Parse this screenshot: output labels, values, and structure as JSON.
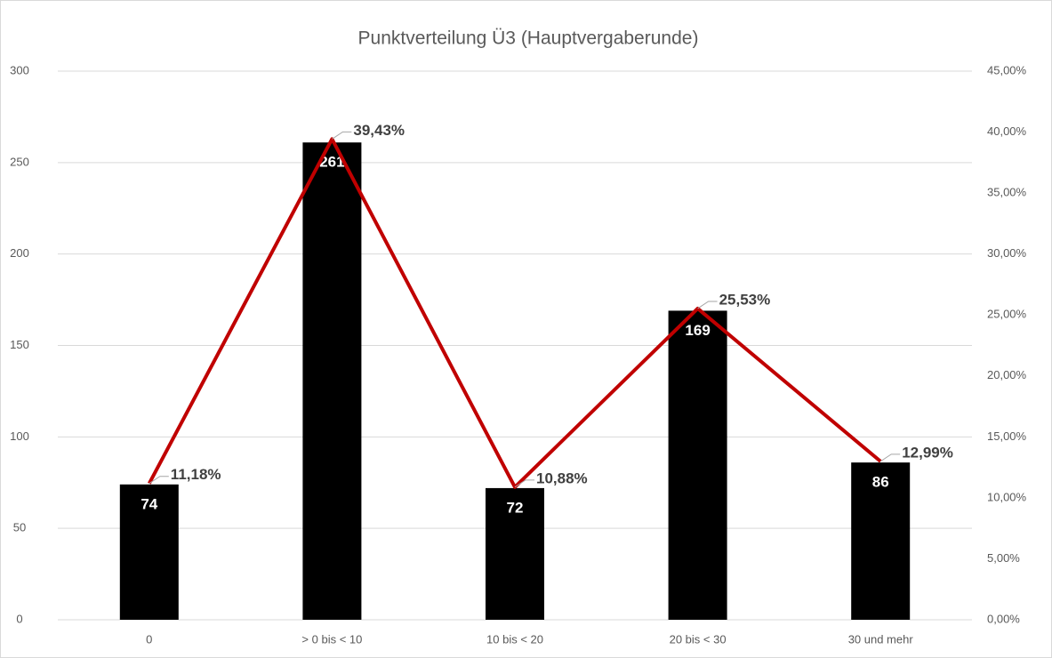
{
  "chart_data": {
    "type": "bar-line",
    "title": "Punktverteilung Ü3 (Hauptvergaberunde)",
    "categories": [
      "0",
      "> 0 bis < 10",
      "10 bis < 20",
      "20 bis < 30",
      "30 und mehr"
    ],
    "series": [
      {
        "type": "bar",
        "color": "#000000",
        "values": [
          74,
          261,
          72,
          169,
          86
        ]
      },
      {
        "type": "line",
        "color": "#c00000",
        "axis": "y2",
        "values": [
          11.18,
          39.43,
          10.88,
          25.53,
          12.99
        ],
        "value_labels": [
          "11,18%",
          "39,43%",
          "10,88%",
          "25,53%",
          "12,99%"
        ]
      }
    ],
    "ylim": [
      0,
      300
    ],
    "yticks": [
      0,
      50,
      100,
      150,
      200,
      250,
      300
    ],
    "y2lim": [
      0,
      45
    ],
    "y2ticks": [
      {
        "value": 0,
        "label": "0,00%"
      },
      {
        "value": 5,
        "label": "5,00%"
      },
      {
        "value": 10,
        "label": "10,00%"
      },
      {
        "value": 15,
        "label": "15,00%"
      },
      {
        "value": 20,
        "label": "20,00%"
      },
      {
        "value": 25,
        "label": "25,00%"
      },
      {
        "value": 30,
        "label": "30,00%"
      },
      {
        "value": 35,
        "label": "35,00%"
      },
      {
        "value": 40,
        "label": "40,00%"
      },
      {
        "value": 45,
        "label": "45,00%"
      }
    ],
    "grid": true
  }
}
